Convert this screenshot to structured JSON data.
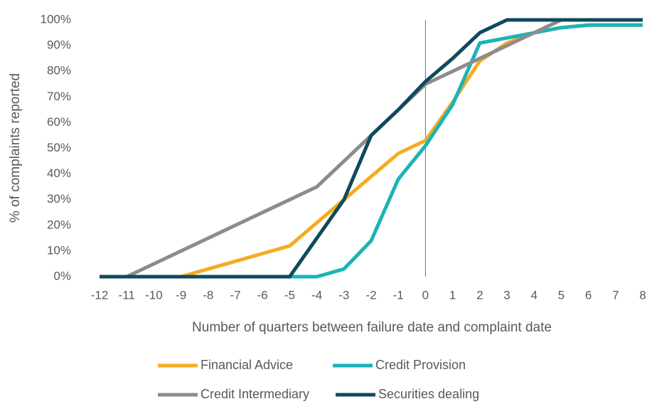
{
  "chart_data": {
    "type": "line",
    "x_label": "Number of quarters between failure date and complaint date",
    "y_label": "% of complaints reported",
    "x": [
      -12,
      -11,
      -10,
      -9,
      -8,
      -7,
      -6,
      -5,
      -4,
      -3,
      -2,
      -1,
      0,
      1,
      2,
      3,
      4,
      5,
      6,
      7,
      8
    ],
    "xlim": [
      -12,
      8
    ],
    "xticks": [
      -12,
      -11,
      -10,
      -9,
      -8,
      -7,
      -6,
      -5,
      -4,
      -3,
      -2,
      -1,
      0,
      1,
      2,
      3,
      4,
      5,
      6,
      7,
      8
    ],
    "ylim": [
      0,
      100
    ],
    "yticks": [
      {
        "value": 0,
        "label": "0%"
      },
      {
        "value": 10,
        "label": "10%"
      },
      {
        "value": 20,
        "label": "20%"
      },
      {
        "value": 30,
        "label": "30%"
      },
      {
        "value": 40,
        "label": "40%"
      },
      {
        "value": 50,
        "label": "50%"
      },
      {
        "value": 60,
        "label": "60%"
      },
      {
        "value": 70,
        "label": "70%"
      },
      {
        "value": 80,
        "label": "80%"
      },
      {
        "value": 90,
        "label": "90%"
      },
      {
        "value": 100,
        "label": "100%"
      }
    ],
    "grid": false,
    "vline_x": 0,
    "vline_color": "#4472c4",
    "legend": "bottom",
    "series": [
      {
        "name": "Financial Advice",
        "color": "#f5ac1f",
        "values": [
          0,
          0,
          0,
          0,
          3,
          6,
          9,
          12,
          21,
          30,
          39,
          48,
          53,
          68,
          84,
          91,
          95,
          97,
          98,
          98,
          98
        ]
      },
      {
        "name": "Credit Provision",
        "color": "#1ab3b8",
        "values": [
          0,
          0,
          0,
          0,
          0,
          0,
          0,
          0,
          0,
          3,
          14,
          38,
          51,
          67,
          91,
          93,
          95,
          97,
          98,
          98,
          98
        ]
      },
      {
        "name": "Credit Intermediary",
        "color": "#8c8c8c",
        "values": [
          0,
          0,
          5,
          10,
          15,
          20,
          25,
          30,
          35,
          45,
          55,
          65,
          75,
          80,
          85,
          90,
          95,
          100,
          100,
          100,
          100
        ]
      },
      {
        "name": "Securities dealing",
        "color": "#0e4a5a",
        "values": [
          0,
          0,
          0,
          0,
          0,
          0,
          0,
          0,
          15,
          30,
          55,
          65,
          76,
          85,
          95,
          100,
          100,
          100,
          100,
          100,
          100
        ]
      }
    ]
  }
}
